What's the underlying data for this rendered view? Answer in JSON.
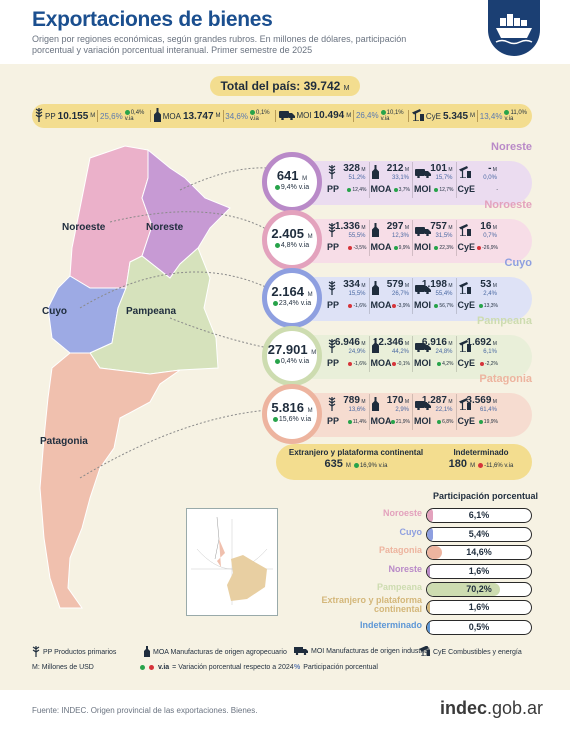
{
  "header": {
    "title": "Exportaciones de bienes",
    "subtitle": "Origen por regiones económicas, según grandes rubros. En millones de dólares, participación porcentual y variación porcentual interanual. Primer semestre de 2025"
  },
  "total": {
    "label": "Total del país: 39.742",
    "unit": "M"
  },
  "summary": [
    {
      "code": "PP",
      "value": "10.155",
      "unit": "M",
      "pct": "25,6%",
      "var": "0,4%",
      "var_unit": "v.ia",
      "trend": "up",
      "icon": "wheat-icon"
    },
    {
      "code": "MOA",
      "value": "13.747",
      "unit": "M",
      "pct": "34,6%",
      "var": "0,1%",
      "var_unit": "v.ia",
      "trend": "up",
      "icon": "bottle-icon"
    },
    {
      "code": "MOI",
      "value": "10.494",
      "unit": "M",
      "pct": "26,4%",
      "var": "10,1%",
      "var_unit": "v.ia",
      "trend": "up",
      "icon": "truck-icon"
    },
    {
      "code": "CyE",
      "value": "5.345",
      "unit": "M",
      "pct": "13,4%",
      "var": "11,0%",
      "var_unit": "v.ia",
      "trend": "up",
      "icon": "oil-pump-icon"
    }
  ],
  "map": {
    "labels": [
      "Noroeste",
      "Noreste",
      "Cuyo",
      "Pampeana",
      "Patagonia"
    ]
  },
  "regions": [
    {
      "name": "Noreste",
      "total": "641",
      "unit": "M",
      "var": "9,4%",
      "var_unit": "v.ia",
      "trend": "up",
      "color": "#b98ac8",
      "panel": "#ebdcf0",
      "cells": [
        {
          "code": "PP",
          "value": "328",
          "pct": "51,2%",
          "var": "12,4%",
          "trend": "up",
          "icon": "wheat-icon"
        },
        {
          "code": "MOA",
          "value": "212",
          "pct": "33,1%",
          "var": "3,7%",
          "trend": "up",
          "icon": "bottle-icon"
        },
        {
          "code": "MOI",
          "value": "101",
          "pct": "15,7%",
          "var": "12,7%",
          "trend": "up",
          "icon": "truck-icon"
        },
        {
          "code": "CyE",
          "value": "-",
          "pct": "0,0%",
          "var": "-",
          "trend": "none",
          "icon": "oil-pump-icon"
        }
      ]
    },
    {
      "name": "Noroeste",
      "total": "2.405",
      "unit": "M",
      "var": "4,8%",
      "var_unit": "v.ia",
      "trend": "up",
      "color": "#e3a2bd",
      "panel": "#f7dde7",
      "cells": [
        {
          "code": "PP",
          "value": "1.336",
          "pct": "55,5%",
          "var": "-3,5%",
          "trend": "down",
          "icon": "wheat-icon"
        },
        {
          "code": "MOA",
          "value": "297",
          "pct": "12,3%",
          "var": "9,9%",
          "trend": "up",
          "icon": "bottle-icon"
        },
        {
          "code": "MOI",
          "value": "757",
          "pct": "31,5%",
          "var": "22,3%",
          "trend": "up",
          "icon": "truck-icon"
        },
        {
          "code": "CyE",
          "value": "16",
          "pct": "0,7%",
          "var": "-26,9%",
          "trend": "down",
          "icon": "oil-pump-icon"
        }
      ]
    },
    {
      "name": "Cuyo",
      "total": "2.164",
      "unit": "M",
      "var": "23,4%",
      "var_unit": "v.ia",
      "trend": "up",
      "color": "#8e9fe0",
      "panel": "#dee2f6",
      "cells": [
        {
          "code": "PP",
          "value": "334",
          "pct": "15,5%",
          "var": "-1,6%",
          "trend": "down",
          "icon": "wheat-icon"
        },
        {
          "code": "MOA",
          "value": "579",
          "pct": "26,7%",
          "var": "-3,9%",
          "trend": "down",
          "icon": "bottle-icon"
        },
        {
          "code": "MOI",
          "value": "1.198",
          "pct": "55,4%",
          "var": "56,7%",
          "trend": "up",
          "icon": "truck-icon"
        },
        {
          "code": "CyE",
          "value": "53",
          "pct": "2,4%",
          "var": "13,3%",
          "trend": "up",
          "icon": "oil-pump-icon"
        }
      ]
    },
    {
      "name": "Pampeana",
      "total": "27.901",
      "unit": "M",
      "var": "0,4%",
      "var_unit": "v.ia",
      "trend": "up",
      "color": "#cddcb0",
      "panel": "#e9efd9",
      "cells": [
        {
          "code": "PP",
          "value": "6.946",
          "pct": "24,9%",
          "var": "-1,6%",
          "trend": "down",
          "icon": "wheat-icon"
        },
        {
          "code": "MOA",
          "value": "12.346",
          "pct": "44,2%",
          "var": "-0,1%",
          "trend": "down",
          "icon": "bottle-icon"
        },
        {
          "code": "MOI",
          "value": "6.916",
          "pct": "24,8%",
          "var": "4,2%",
          "trend": "up",
          "icon": "truck-icon"
        },
        {
          "code": "CyE",
          "value": "1.692",
          "pct": "6,1%",
          "var": "-2,2%",
          "trend": "down",
          "icon": "oil-pump-icon"
        }
      ]
    },
    {
      "name": "Patagonia",
      "total": "5.816",
      "unit": "M",
      "var": "15,6%",
      "var_unit": "v.ia",
      "trend": "up",
      "color": "#edb49f",
      "panel": "#f6dcd0",
      "cells": [
        {
          "code": "PP",
          "value": "789",
          "pct": "13,6%",
          "var": "11,4%",
          "trend": "up",
          "icon": "wheat-icon"
        },
        {
          "code": "MOA",
          "value": "170",
          "pct": "2,9%",
          "var": "21,9%",
          "trend": "up",
          "icon": "bottle-icon"
        },
        {
          "code": "MOI",
          "value": "1.287",
          "pct": "22,1%",
          "var": "6,8%",
          "trend": "up",
          "icon": "truck-icon"
        },
        {
          "code": "CyE",
          "value": "3.569",
          "pct": "61,4%",
          "var": "19,9%",
          "trend": "up",
          "icon": "oil-pump-icon"
        }
      ]
    }
  ],
  "extra": {
    "foreign": {
      "label": "Extranjero y plataforma continental",
      "value": "635",
      "unit": "M",
      "var": "16,9%",
      "var_unit": "v.ia",
      "trend": "up"
    },
    "undetermined": {
      "label": "Indeterminado",
      "value": "180",
      "unit": "M",
      "var": "-11,6%",
      "var_unit": "v.ia",
      "trend": "down"
    }
  },
  "participation": {
    "title": "Participación porcentual",
    "rows": [
      {
        "label": "Noroeste",
        "value": "6,1%",
        "fraction": 0.061,
        "color": "#e3a2bd"
      },
      {
        "label": "Cuyo",
        "value": "5,4%",
        "fraction": 0.054,
        "color": "#8e9fe0"
      },
      {
        "label": "Patagonia",
        "value": "14,6%",
        "fraction": 0.146,
        "color": "#edb49f"
      },
      {
        "label": "Noreste",
        "value": "1,6%",
        "fraction": 0.016,
        "color": "#b98ac8"
      },
      {
        "label": "Pampeana",
        "value": "70,2%",
        "fraction": 0.702,
        "color": "#cddcb0"
      },
      {
        "label": "Extranjero y plataforma continental",
        "value": "1,6%",
        "fraction": 0.016,
        "color": "#d4b77a"
      },
      {
        "label": "Indeterminado",
        "value": "0,5%",
        "fraction": 0.005,
        "color": "#5d97d6"
      }
    ]
  },
  "legend": {
    "pp": "PP Productos primarios",
    "moa": "MOA Manufacturas de origen agropecuario",
    "moi": "MOI Manufacturas de origen industrial",
    "cye": "CyE Combustibles y energía",
    "m": "M: Millones de USD",
    "via": "v.ia",
    "via_desc": "= Variación porcentual respecto a 2024",
    "pct_sym": "%",
    "pct_desc": "Participación porcentual"
  },
  "footer": {
    "source": "Fuente: INDEC. Origen provincial de las exportaciones. Bienes.",
    "logo_main": "indec",
    "logo_suffix": ".gob.ar"
  },
  "colors": {
    "title": "#1b4f8f",
    "badge": "#1b3f73",
    "bar": "#f3dd8f",
    "background": "#f6f2e3"
  }
}
